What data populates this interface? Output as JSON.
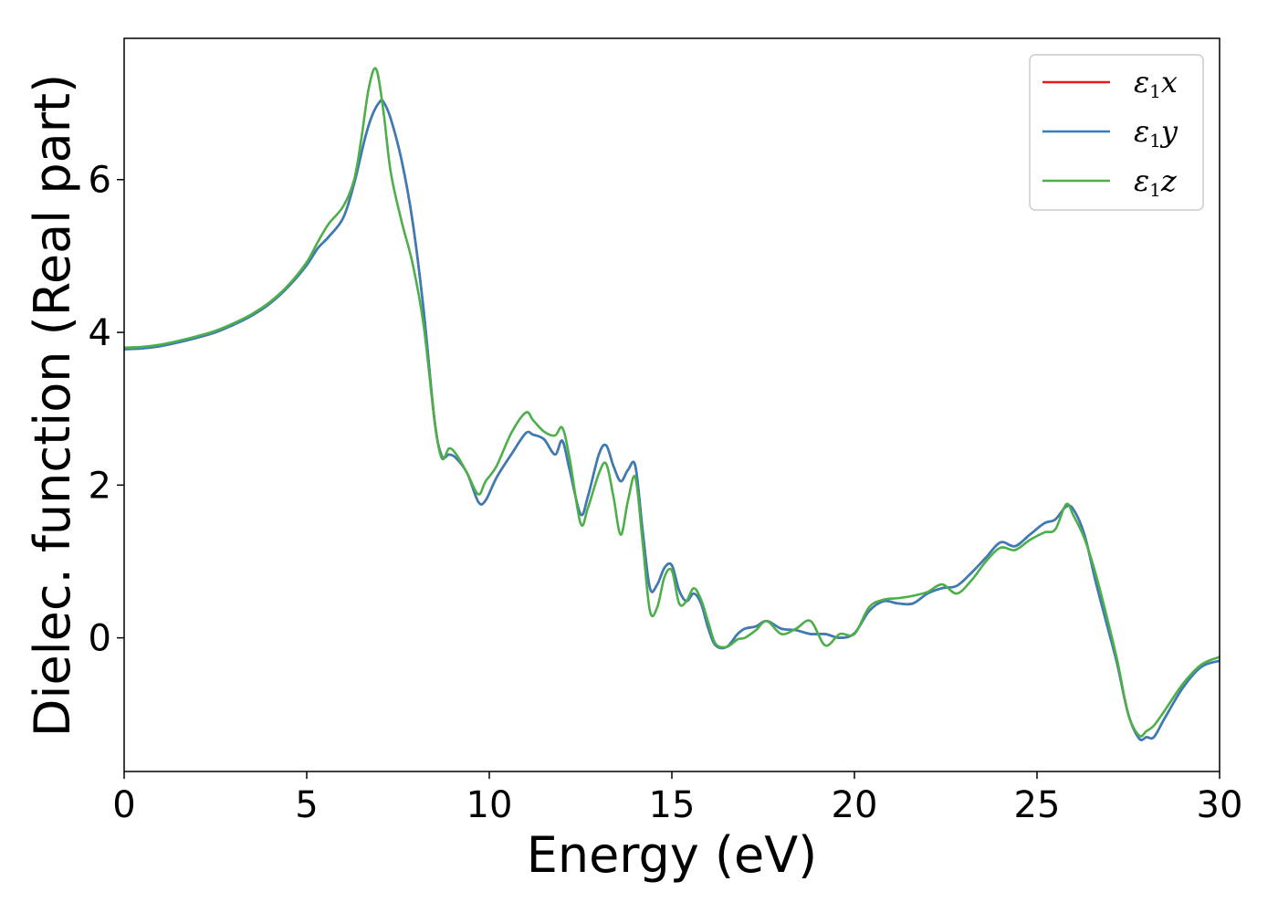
{
  "chart_data": {
    "type": "line",
    "xlabel": "Energy (eV)",
    "ylabel": "Dielec. function (Real part)",
    "xlim": [
      0,
      30
    ],
    "ylim": [
      -1.75,
      7.85
    ],
    "xticks": [
      0,
      5,
      10,
      15,
      20,
      25,
      30
    ],
    "yticks": [
      0,
      2,
      4,
      6
    ],
    "grid": false,
    "legend_position": "top-right",
    "series": [
      {
        "name": "ε1x",
        "legend_base": "ε",
        "legend_sub": "1",
        "legend_tail": "x",
        "color": "#e41a1c",
        "x": [
          0,
          0.5,
          1,
          1.5,
          2,
          2.5,
          3,
          3.5,
          4,
          4.5,
          5,
          5.3,
          5.6,
          6,
          6.3,
          6.6,
          6.8,
          7,
          7.1,
          7.3,
          7.6,
          7.9,
          8.2,
          8.5,
          8.7,
          8.9,
          9.1,
          9.4,
          9.7,
          9.9,
          10.2,
          10.6,
          11,
          11.2,
          11.5,
          11.8,
          12,
          12.2,
          12.5,
          12.7,
          13,
          13.2,
          13.4,
          13.6,
          13.8,
          14,
          14.2,
          14.4,
          14.6,
          14.8,
          15,
          15.2,
          15.4,
          15.6,
          15.8,
          16,
          16.2,
          16.5,
          16.8,
          17,
          17.3,
          17.6,
          18,
          18.4,
          18.8,
          19.2,
          19.6,
          20,
          20.4,
          20.8,
          21.2,
          21.6,
          22,
          22.4,
          22.8,
          23.2,
          23.6,
          24,
          24.4,
          24.8,
          25.2,
          25.5,
          25.8,
          26,
          26.3,
          26.6,
          26.9,
          27.2,
          27.5,
          27.8,
          28,
          28.2,
          28.5,
          29,
          29.5,
          30
        ],
        "y": [
          3.78,
          3.79,
          3.82,
          3.87,
          3.93,
          4.0,
          4.1,
          4.22,
          4.38,
          4.6,
          4.88,
          5.1,
          5.25,
          5.5,
          5.95,
          6.55,
          6.85,
          7.02,
          7.02,
          6.8,
          6.25,
          5.45,
          4.3,
          2.85,
          2.38,
          2.4,
          2.35,
          2.15,
          1.78,
          1.8,
          2.1,
          2.4,
          2.68,
          2.66,
          2.6,
          2.4,
          2.58,
          2.2,
          1.62,
          1.85,
          2.4,
          2.52,
          2.25,
          2.05,
          2.2,
          2.25,
          1.4,
          0.65,
          0.7,
          0.92,
          0.95,
          0.62,
          0.48,
          0.58,
          0.45,
          0.12,
          -0.1,
          -0.12,
          0.05,
          0.12,
          0.15,
          0.22,
          0.12,
          0.1,
          0.05,
          0.05,
          0.0,
          0.06,
          0.35,
          0.48,
          0.45,
          0.45,
          0.58,
          0.65,
          0.68,
          0.85,
          1.05,
          1.25,
          1.2,
          1.35,
          1.5,
          1.55,
          1.72,
          1.68,
          1.35,
          0.75,
          0.2,
          -0.35,
          -1.0,
          -1.32,
          -1.3,
          -1.3,
          -1.05,
          -0.65,
          -0.38,
          -0.3
        ]
      },
      {
        "name": "ε1y",
        "legend_base": "ε",
        "legend_sub": "1",
        "legend_tail": "y",
        "color": "#377eb8",
        "x": [
          0,
          0.5,
          1,
          1.5,
          2,
          2.5,
          3,
          3.5,
          4,
          4.5,
          5,
          5.3,
          5.6,
          6,
          6.3,
          6.6,
          6.8,
          7,
          7.1,
          7.3,
          7.6,
          7.9,
          8.2,
          8.5,
          8.7,
          8.9,
          9.1,
          9.4,
          9.7,
          9.9,
          10.2,
          10.6,
          11,
          11.2,
          11.5,
          11.8,
          12,
          12.2,
          12.5,
          12.7,
          13,
          13.2,
          13.4,
          13.6,
          13.8,
          14,
          14.2,
          14.4,
          14.6,
          14.8,
          15,
          15.2,
          15.4,
          15.6,
          15.8,
          16,
          16.2,
          16.5,
          16.8,
          17,
          17.3,
          17.6,
          18,
          18.4,
          18.8,
          19.2,
          19.6,
          20,
          20.4,
          20.8,
          21.2,
          21.6,
          22,
          22.4,
          22.8,
          23.2,
          23.6,
          24,
          24.4,
          24.8,
          25.2,
          25.5,
          25.8,
          26,
          26.3,
          26.6,
          26.9,
          27.2,
          27.5,
          27.8,
          28,
          28.2,
          28.5,
          29,
          29.5,
          30
        ],
        "y": [
          3.78,
          3.79,
          3.82,
          3.87,
          3.93,
          4.0,
          4.1,
          4.22,
          4.38,
          4.6,
          4.88,
          5.1,
          5.25,
          5.5,
          5.95,
          6.55,
          6.85,
          7.02,
          7.02,
          6.8,
          6.25,
          5.45,
          4.3,
          2.85,
          2.38,
          2.4,
          2.35,
          2.15,
          1.78,
          1.8,
          2.1,
          2.4,
          2.68,
          2.66,
          2.6,
          2.4,
          2.58,
          2.2,
          1.62,
          1.85,
          2.4,
          2.52,
          2.25,
          2.05,
          2.2,
          2.25,
          1.4,
          0.65,
          0.7,
          0.92,
          0.95,
          0.62,
          0.48,
          0.58,
          0.45,
          0.12,
          -0.1,
          -0.12,
          0.05,
          0.12,
          0.15,
          0.22,
          0.12,
          0.1,
          0.05,
          0.05,
          0.0,
          0.06,
          0.35,
          0.48,
          0.45,
          0.45,
          0.58,
          0.65,
          0.68,
          0.85,
          1.05,
          1.25,
          1.2,
          1.35,
          1.5,
          1.55,
          1.72,
          1.68,
          1.35,
          0.75,
          0.2,
          -0.35,
          -1.0,
          -1.32,
          -1.3,
          -1.3,
          -1.05,
          -0.65,
          -0.38,
          -0.3
        ]
      },
      {
        "name": "ε1z",
        "legend_base": "ε",
        "legend_sub": "1",
        "legend_tail": "z",
        "color": "#4daf4a",
        "x": [
          0,
          0.5,
          1,
          1.5,
          2,
          2.5,
          3,
          3.5,
          4,
          4.5,
          5,
          5.3,
          5.6,
          6,
          6.3,
          6.5,
          6.7,
          6.9,
          7.1,
          7.3,
          7.6,
          7.9,
          8.2,
          8.5,
          8.7,
          8.9,
          9.1,
          9.4,
          9.7,
          9.9,
          10.2,
          10.6,
          11,
          11.2,
          11.5,
          11.8,
          12,
          12.2,
          12.5,
          12.7,
          13,
          13.2,
          13.4,
          13.6,
          13.8,
          14,
          14.2,
          14.4,
          14.6,
          14.8,
          15,
          15.2,
          15.4,
          15.6,
          15.8,
          16,
          16.2,
          16.5,
          16.8,
          17,
          17.3,
          17.6,
          18,
          18.4,
          18.8,
          19.2,
          19.6,
          20,
          20.4,
          20.8,
          21.2,
          21.6,
          22,
          22.4,
          22.8,
          23.2,
          23.6,
          24,
          24.4,
          24.8,
          25.2,
          25.5,
          25.8,
          26,
          26.3,
          26.6,
          26.9,
          27.2,
          27.5,
          27.8,
          28,
          28.2,
          28.5,
          29,
          29.5,
          30
        ],
        "y": [
          3.8,
          3.81,
          3.84,
          3.89,
          3.95,
          4.02,
          4.12,
          4.24,
          4.4,
          4.62,
          4.92,
          5.18,
          5.42,
          5.65,
          6.0,
          6.55,
          7.2,
          7.45,
          6.9,
          6.1,
          5.45,
          4.9,
          4.1,
          2.85,
          2.35,
          2.48,
          2.4,
          2.15,
          1.88,
          2.05,
          2.25,
          2.68,
          2.95,
          2.85,
          2.7,
          2.65,
          2.75,
          2.35,
          1.5,
          1.7,
          2.15,
          2.28,
          1.85,
          1.35,
          1.8,
          2.1,
          1.25,
          0.35,
          0.4,
          0.8,
          0.88,
          0.45,
          0.48,
          0.65,
          0.5,
          0.2,
          -0.08,
          -0.12,
          -0.02,
          0.0,
          0.1,
          0.22,
          0.05,
          0.12,
          0.22,
          -0.1,
          0.05,
          0.05,
          0.4,
          0.5,
          0.52,
          0.55,
          0.6,
          0.7,
          0.58,
          0.75,
          1.0,
          1.18,
          1.15,
          1.28,
          1.38,
          1.42,
          1.75,
          1.6,
          1.3,
          0.85,
          0.3,
          -0.3,
          -1.0,
          -1.28,
          -1.22,
          -1.15,
          -0.95,
          -0.6,
          -0.35,
          -0.25
        ]
      }
    ]
  }
}
